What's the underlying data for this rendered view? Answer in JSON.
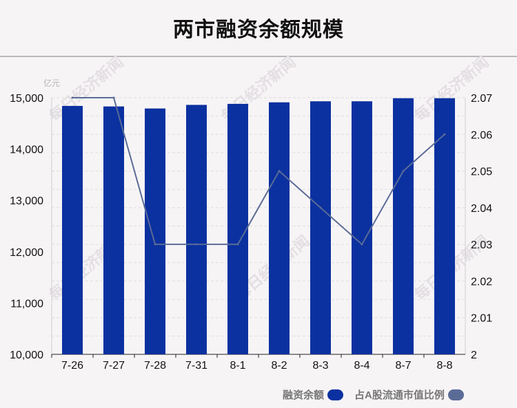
{
  "title": "两市融资余额规模",
  "unit_label": "亿元",
  "watermark": "每日经济新闻",
  "colors": {
    "bar": "#0b31a0",
    "line": "#5a6b96",
    "grid": "#dddddd",
    "axis": "#222222"
  },
  "legend": [
    {
      "label": "融资余额",
      "color": "#0b31a0"
    },
    {
      "label": "占A股流通市值比例",
      "color": "#5a6b96"
    }
  ],
  "chart_data": {
    "type": "bar",
    "categories": [
      "7-26",
      "7-27",
      "7-28",
      "7-31",
      "8-1",
      "8-2",
      "8-3",
      "8-4",
      "8-7",
      "8-8"
    ],
    "series": [
      {
        "name": "融资余额",
        "type": "bar",
        "axis": "left",
        "values": [
          14840,
          14830,
          14790,
          14860,
          14880,
          14910,
          14930,
          14930,
          14990,
          14990
        ]
      },
      {
        "name": "占A股流通市值比例",
        "type": "line",
        "axis": "right",
        "values": [
          2.07,
          2.07,
          2.03,
          2.03,
          2.03,
          2.05,
          2.04,
          2.03,
          2.05,
          2.06
        ]
      }
    ],
    "y_left": {
      "min": 10000,
      "max": 15000,
      "ticks": [
        "10,000",
        "11,000",
        "12,000",
        "13,000",
        "14,000",
        "15,000"
      ]
    },
    "y_right": {
      "min": 2,
      "max": 2.07,
      "ticks": [
        "2",
        "2.01",
        "2.02",
        "2.03",
        "2.04",
        "2.05",
        "2.06",
        "2.07"
      ]
    },
    "grid": true,
    "legend_position": "bottom-right"
  }
}
